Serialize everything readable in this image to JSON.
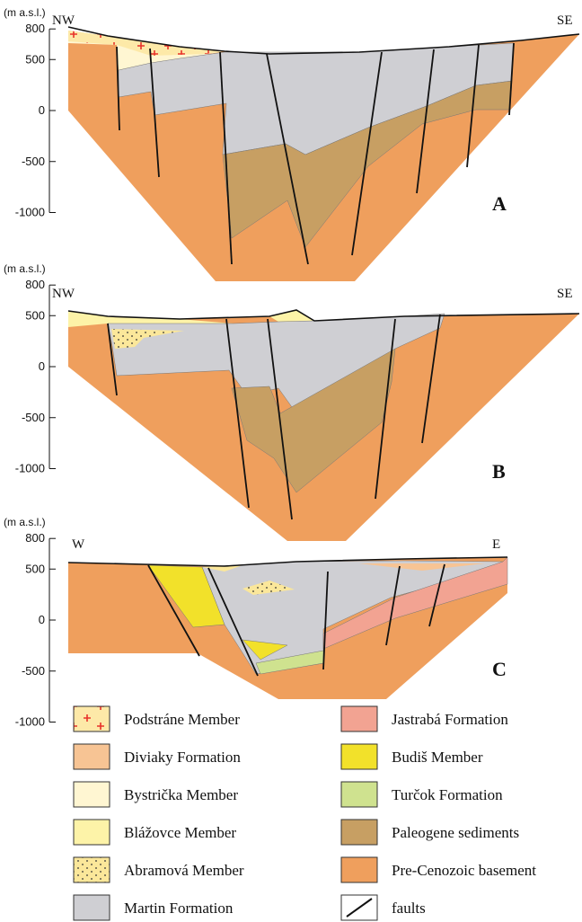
{
  "panels": [
    {
      "axis_label": "(m a.s.l.)",
      "yticks": [
        "800",
        "500",
        "0",
        "-500",
        "-1000"
      ],
      "left_label": "NW",
      "right_label": "SE",
      "label": "A"
    },
    {
      "axis_label": "(m a.s.l.)",
      "yticks": [
        "800",
        "500",
        "0",
        "-500",
        "-1000"
      ],
      "left_label": "NW",
      "right_label": "SE",
      "label": "B"
    },
    {
      "axis_label": "(m a.s.l.)",
      "yticks": [
        "800",
        "500",
        "0",
        "-500",
        "-1000"
      ],
      "left_label": "W",
      "right_label": "E",
      "label": "C"
    }
  ],
  "legend": [
    {
      "label": "Podstráne Member"
    },
    {
      "label": "Diviaky Formation"
    },
    {
      "label": "Bystrička Member"
    },
    {
      "label": "Blážovce Member"
    },
    {
      "label": "Abramová Member"
    },
    {
      "label": "Martin Formation"
    },
    {
      "label": "Jastrabá Formation"
    },
    {
      "label": "Budiš Member"
    },
    {
      "label": "Turčok Formation"
    },
    {
      "label": "Paleogene sediments"
    },
    {
      "label": "Pre-Cenozoic basement"
    },
    {
      "label": "faults"
    }
  ]
}
